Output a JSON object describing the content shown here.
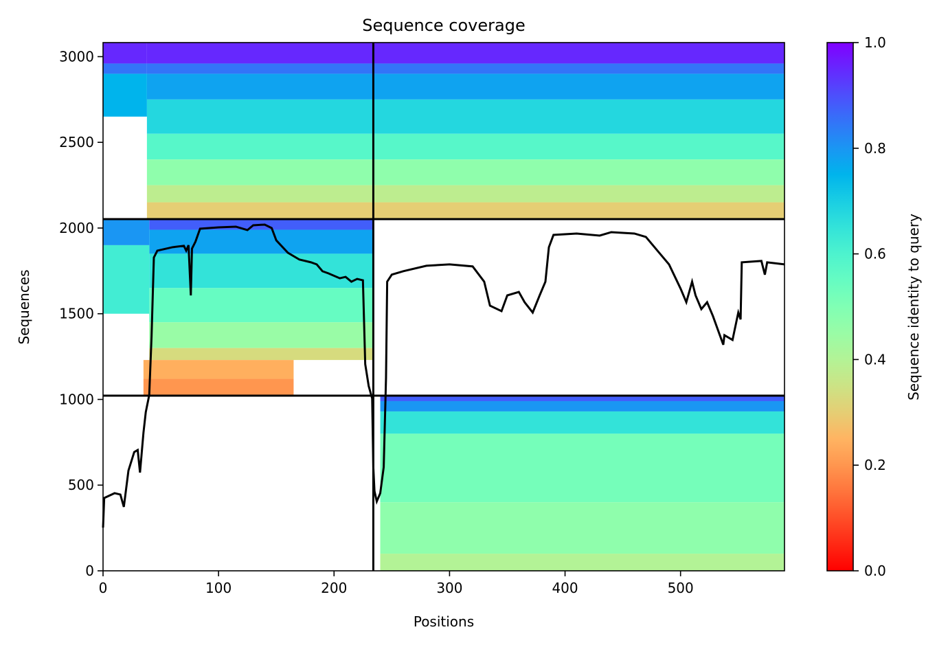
{
  "chart_data": {
    "type": "coverage",
    "title": "Sequence coverage",
    "xlabel": "Positions",
    "ylabel": "Sequences",
    "xlim": [
      0,
      590
    ],
    "ylim": [
      0,
      3082
    ],
    "xticks": [
      0,
      100,
      200,
      300,
      400,
      500
    ],
    "yticks": [
      0,
      500,
      1000,
      1500,
      2000,
      2500,
      3000
    ],
    "colormap": "rainbow_r",
    "colorbar": {
      "label": "Sequence identity to query",
      "lim": [
        0,
        1
      ],
      "ticks": [
        {
          "value": 0,
          "label": "0.0"
        },
        {
          "value": 0.2,
          "label": "0.2"
        },
        {
          "value": 0.4,
          "label": "0.4"
        },
        {
          "value": 0.6,
          "label": "0.6"
        },
        {
          "value": 0.8,
          "label": "0.8"
        },
        {
          "value": 1,
          "label": "1.0"
        }
      ]
    },
    "blocks": [
      {
        "x": [
          38,
          590
        ],
        "bands": [
          {
            "y": [
              2960,
              3082
            ],
            "identity": 0.95
          },
          {
            "y": [
              2900,
              2960
            ],
            "identity": 0.85
          },
          {
            "y": [
              2750,
              2900
            ],
            "identity": 0.78
          },
          {
            "y": [
              2550,
              2750
            ],
            "identity": 0.68
          },
          {
            "y": [
              2400,
              2550
            ],
            "identity": 0.58
          },
          {
            "y": [
              2250,
              2400
            ],
            "identity": 0.47
          },
          {
            "y": [
              2150,
              2250
            ],
            "identity": 0.38
          },
          {
            "y": [
              2052,
              2150
            ],
            "identity": 0.3
          }
        ]
      },
      {
        "x": [
          0,
          38
        ],
        "bands": [
          {
            "y": [
              2960,
              3082
            ],
            "identity": 0.95
          },
          {
            "y": [
              2900,
              2960
            ],
            "identity": 0.85
          },
          {
            "y": [
              2650,
              2900
            ],
            "identity": 0.75
          }
        ]
      },
      {
        "x": [
          40,
          234
        ],
        "bands": [
          {
            "y": [
              1990,
              2052
            ],
            "identity": 0.88
          },
          {
            "y": [
              1850,
              1990
            ],
            "identity": 0.78
          },
          {
            "y": [
              1650,
              1850
            ],
            "identity": 0.65
          },
          {
            "y": [
              1450,
              1650
            ],
            "identity": 0.55
          },
          {
            "y": [
              1300,
              1450
            ],
            "identity": 0.45
          },
          {
            "y": [
              1230,
              1300
            ],
            "identity": 0.33
          }
        ]
      },
      {
        "x": [
          0,
          40
        ],
        "bands": [
          {
            "y": [
              1900,
              2052
            ],
            "identity": 0.8
          },
          {
            "y": [
              1500,
              1900
            ],
            "identity": 0.62
          }
        ]
      },
      {
        "x": [
          35,
          165
        ],
        "bands": [
          {
            "y": [
              1120,
              1230
            ],
            "identity": 0.24
          },
          {
            "y": [
              1022,
              1120
            ],
            "identity": 0.2
          }
        ]
      },
      {
        "x": [
          240,
          590
        ],
        "bands": [
          {
            "y": [
              990,
              1022
            ],
            "identity": 0.88
          },
          {
            "y": [
              930,
              990
            ],
            "identity": 0.8
          },
          {
            "y": [
              800,
              930
            ],
            "identity": 0.65
          },
          {
            "y": [
              400,
              800
            ],
            "identity": 0.52
          },
          {
            "y": [
              100,
              400
            ],
            "identity": 0.47
          },
          {
            "y": [
              0,
              100
            ],
            "identity": 0.4
          }
        ]
      }
    ],
    "dividers": {
      "x": [
        234
      ],
      "y": [
        1022,
        2052
      ]
    },
    "coverage": {
      "x": [
        0,
        1,
        10,
        15,
        18,
        22,
        27,
        30,
        32,
        35,
        37,
        40,
        42,
        44,
        47,
        60,
        70,
        72,
        74,
        76,
        77,
        80,
        84,
        100,
        115,
        125,
        130,
        140,
        146,
        150,
        160,
        170,
        180,
        185,
        190,
        195,
        205,
        210,
        215,
        220,
        225,
        227,
        230,
        233,
        234,
        235,
        237,
        240,
        243,
        245,
        246,
        250,
        260,
        280,
        300,
        320,
        330,
        335,
        345,
        350,
        360,
        365,
        372,
        378,
        383,
        386,
        390,
        410,
        430,
        440,
        460,
        470,
        480,
        490,
        500,
        505,
        510,
        513,
        518,
        523,
        528,
        537,
        538,
        545,
        550,
        552,
        553,
        570,
        573,
        575,
        590
      ],
      "values": [
        252,
        425,
        453,
        445,
        373,
        585,
        693,
        705,
        573,
        806,
        926,
        1026,
        1367,
        1828,
        1868,
        1888,
        1896,
        1868,
        1900,
        1607,
        1880,
        1920,
        1996,
        2004,
        2008,
        1988,
        2016,
        2020,
        2000,
        1928,
        1856,
        1816,
        1800,
        1788,
        1748,
        1736,
        1707,
        1715,
        1687,
        1703,
        1695,
        1206,
        1078,
        1006,
        605,
        465,
        405,
        453,
        605,
        1126,
        1687,
        1728,
        1748,
        1780,
        1788,
        1776,
        1687,
        1547,
        1515,
        1607,
        1627,
        1567,
        1507,
        1607,
        1687,
        1888,
        1960,
        1968,
        1956,
        1976,
        1968,
        1948,
        1868,
        1788,
        1647,
        1567,
        1687,
        1607,
        1527,
        1567,
        1487,
        1319,
        1375,
        1347,
        1507,
        1467,
        1800,
        1808,
        1728,
        1800,
        1788
      ],
      "color": "#000000"
    }
  }
}
